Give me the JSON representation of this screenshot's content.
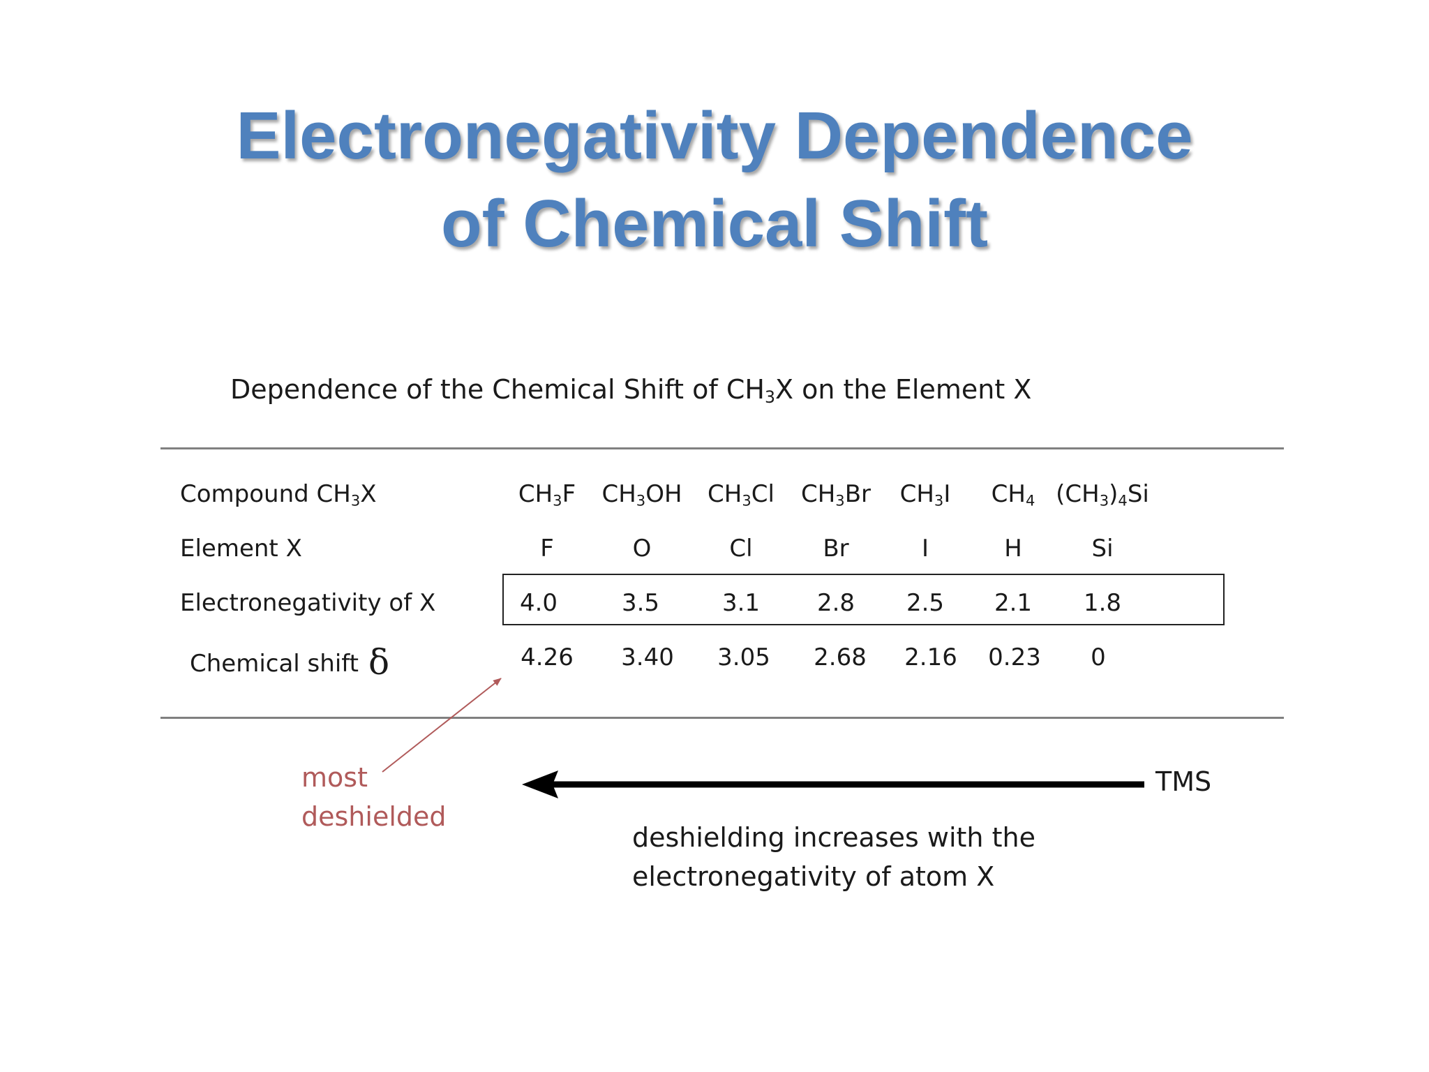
{
  "slide": {
    "title_line1": "Electronegativity Dependence",
    "title_line2": "of Chemical Shift"
  },
  "table": {
    "caption_prefix": "Dependence of the Chemical Shift of CH",
    "caption_sub": "3",
    "caption_suffix": "X on the Element X",
    "labels": {
      "compound_prefix": "Compound CH",
      "compound_sub": "3",
      "compound_suffix": "X",
      "element": "Element X",
      "electronegativity": "Electronegativity of X",
      "shift": "Chemical shift",
      "shift_symbol": "δ"
    },
    "compounds": [
      {
        "html": "CH<sub>3</sub>F"
      },
      {
        "html": "CH<sub>3</sub>OH"
      },
      {
        "html": "CH<sub>3</sub>Cl"
      },
      {
        "html": "CH<sub>3</sub>Br"
      },
      {
        "html": "CH<sub>3</sub>I"
      },
      {
        "html": "CH<sub>4</sub>"
      },
      {
        "html": "(CH<sub>3</sub>)<sub>4</sub>Si"
      }
    ],
    "elements": [
      "F",
      "O",
      "Cl",
      "Br",
      "I",
      "H",
      "Si"
    ],
    "electronegativity": [
      "4.0",
      "3.5",
      "3.1",
      "2.8",
      "2.5",
      "2.1",
      "1.8"
    ],
    "shifts": [
      "4.26",
      "3.40",
      "3.05",
      "2.68",
      "2.16",
      "0.23",
      "0"
    ]
  },
  "annotations": {
    "most_line1": "most",
    "most_line2": "deshielded",
    "tms": "TMS",
    "note_line1": "deshielding increases with the",
    "note_line2": "electronegativity of atom X",
    "annotation_color": "#b05a5a",
    "title_color": "#4f81bd"
  }
}
